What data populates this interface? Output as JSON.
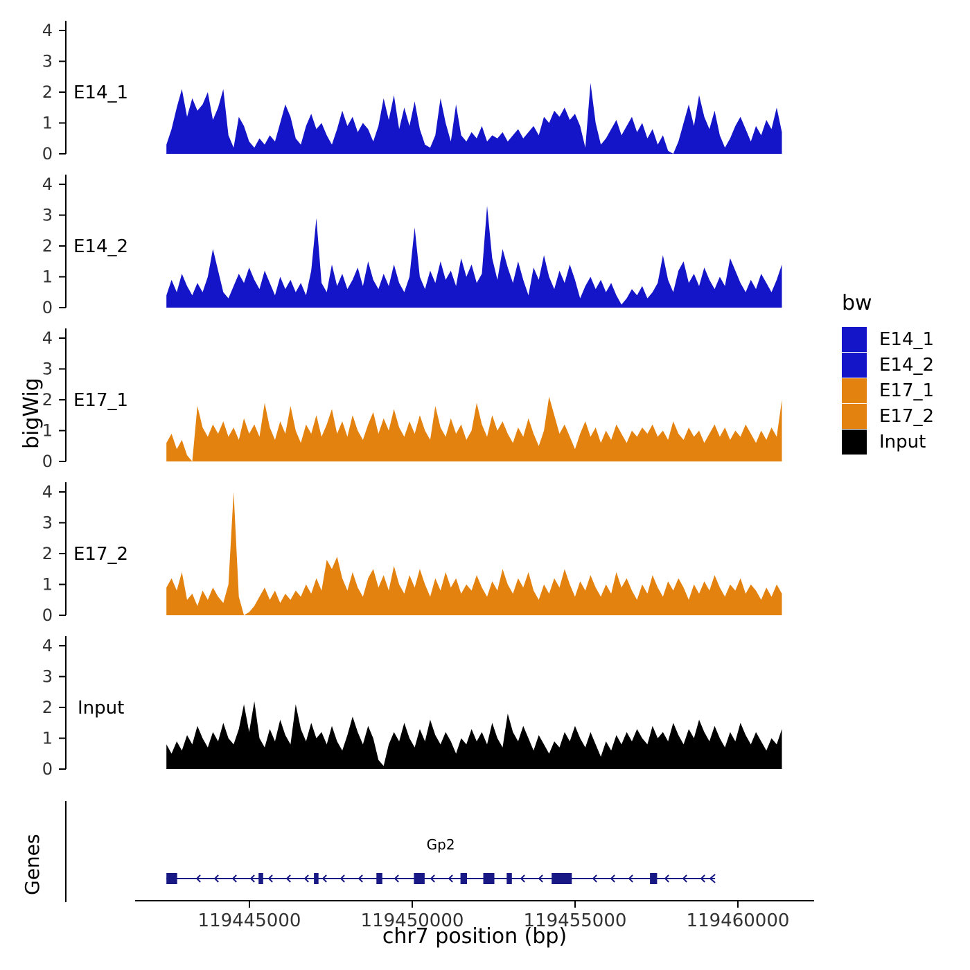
{
  "chart_data": {
    "type": "area",
    "title": "",
    "ylabel": "bigWig",
    "xlabel": "chr7 position (bp)",
    "ylim": [
      0,
      4.3
    ],
    "y_ticks": [
      0,
      1,
      2,
      3,
      4
    ],
    "x_ticks": [
      119445000,
      119450000,
      119455000,
      119460000
    ],
    "x_tick_labels": [
      "119445000",
      "119450000",
      "119455000",
      "119460000"
    ],
    "x_domain": [
      119441500,
      119462400
    ],
    "series_x_range": [
      119442450,
      119461350
    ],
    "grid": false,
    "legend_position": "right",
    "series": [
      {
        "name": "E14_1",
        "color": "#1414c8",
        "values": [
          0.3,
          0.8,
          1.5,
          2.1,
          1.2,
          1.8,
          1.4,
          1.6,
          2.0,
          1.1,
          1.5,
          2.1,
          0.6,
          0.2,
          1.2,
          0.9,
          0.4,
          0.2,
          0.5,
          0.3,
          0.6,
          0.4,
          1.0,
          1.6,
          1.2,
          0.5,
          0.3,
          0.9,
          1.3,
          0.8,
          1.0,
          0.6,
          0.3,
          0.8,
          1.4,
          0.9,
          1.2,
          0.7,
          1.0,
          0.8,
          0.4,
          0.9,
          1.8,
          1.1,
          1.9,
          0.8,
          1.5,
          0.9,
          1.7,
          0.8,
          0.3,
          0.2,
          0.6,
          1.8,
          1.0,
          0.4,
          1.6,
          0.6,
          0.4,
          0.7,
          0.5,
          0.9,
          0.4,
          0.6,
          0.5,
          0.7,
          0.4,
          0.6,
          0.8,
          0.5,
          0.7,
          0.9,
          0.6,
          1.2,
          1.0,
          1.4,
          1.2,
          1.5,
          1.1,
          1.3,
          0.9,
          0.2,
          2.3,
          1.0,
          0.3,
          0.5,
          0.8,
          1.1,
          0.6,
          0.9,
          1.2,
          0.7,
          1.0,
          0.5,
          0.8,
          0.3,
          0.6,
          0.1,
          0.0,
          0.4,
          1.0,
          1.6,
          0.9,
          1.9,
          1.2,
          0.8,
          1.4,
          0.6,
          0.2,
          0.5,
          0.9,
          1.2,
          0.8,
          0.4,
          0.9,
          0.6,
          1.1,
          0.8,
          1.5,
          0.7
        ]
      },
      {
        "name": "E14_2",
        "color": "#1414c8",
        "values": [
          0.4,
          0.9,
          0.5,
          1.1,
          0.7,
          0.4,
          0.8,
          0.5,
          1.0,
          1.9,
          1.2,
          0.5,
          0.3,
          0.7,
          1.1,
          0.8,
          1.3,
          0.9,
          0.6,
          1.2,
          0.8,
          0.4,
          1.0,
          0.6,
          0.9,
          0.5,
          0.8,
          0.4,
          1.2,
          2.9,
          0.8,
          0.5,
          1.4,
          0.7,
          1.1,
          0.6,
          0.9,
          1.3,
          0.7,
          1.5,
          0.9,
          0.6,
          1.1,
          0.7,
          1.4,
          0.8,
          0.5,
          1.0,
          2.6,
          1.0,
          0.6,
          1.2,
          0.8,
          1.5,
          0.9,
          1.2,
          0.7,
          1.6,
          1.0,
          1.4,
          0.8,
          1.1,
          3.3,
          1.6,
          0.9,
          1.9,
          1.3,
          0.8,
          1.5,
          0.9,
          0.4,
          1.3,
          0.9,
          1.7,
          1.0,
          0.6,
          1.2,
          0.8,
          1.4,
          0.9,
          0.3,
          0.7,
          1.0,
          0.6,
          0.9,
          0.5,
          0.8,
          0.4,
          0.1,
          0.3,
          0.6,
          0.4,
          0.7,
          0.3,
          0.5,
          0.8,
          1.7,
          0.9,
          0.5,
          1.2,
          1.5,
          0.8,
          1.1,
          0.7,
          1.3,
          0.9,
          0.6,
          1.0,
          0.7,
          1.6,
          1.2,
          0.8,
          0.5,
          0.9,
          0.6,
          1.1,
          0.8,
          0.5,
          0.9,
          1.4
        ]
      },
      {
        "name": "E17_1",
        "color": "#e3820f",
        "values": [
          0.6,
          0.9,
          0.4,
          0.7,
          0.2,
          0.0,
          1.8,
          1.1,
          0.8,
          1.2,
          0.9,
          1.3,
          0.8,
          1.1,
          0.7,
          1.4,
          0.9,
          1.2,
          0.8,
          1.9,
          1.1,
          0.7,
          1.3,
          0.9,
          1.8,
          1.0,
          0.6,
          1.2,
          0.9,
          1.5,
          0.8,
          1.2,
          1.7,
          0.9,
          1.3,
          0.8,
          1.5,
          1.0,
          0.7,
          1.2,
          1.6,
          0.9,
          1.4,
          1.0,
          1.7,
          1.1,
          0.8,
          1.3,
          0.9,
          1.5,
          1.0,
          0.7,
          1.8,
          1.1,
          0.8,
          1.4,
          0.9,
          1.2,
          0.7,
          1.0,
          1.9,
          1.2,
          0.8,
          1.5,
          1.0,
          1.3,
          0.9,
          0.6,
          1.1,
          0.8,
          1.4,
          0.9,
          0.5,
          1.0,
          2.1,
          1.5,
          0.9,
          1.2,
          0.8,
          0.4,
          0.9,
          1.3,
          0.8,
          1.1,
          0.6,
          1.0,
          0.7,
          1.2,
          0.9,
          0.6,
          1.0,
          0.8,
          1.1,
          0.9,
          1.2,
          0.8,
          1.0,
          0.7,
          1.3,
          0.9,
          0.7,
          1.1,
          0.8,
          1.0,
          0.6,
          0.9,
          1.2,
          0.8,
          1.1,
          0.7,
          1.0,
          0.8,
          1.2,
          0.9,
          0.6,
          1.0,
          0.7,
          1.1,
          0.8,
          2.0
        ]
      },
      {
        "name": "E17_2",
        "color": "#e3820f",
        "values": [
          0.9,
          1.2,
          0.8,
          1.4,
          0.5,
          0.7,
          0.3,
          0.8,
          0.5,
          0.9,
          0.6,
          0.4,
          1.0,
          4.0,
          0.6,
          0.0,
          0.1,
          0.3,
          0.6,
          0.9,
          0.5,
          0.8,
          0.4,
          0.7,
          0.5,
          0.8,
          0.6,
          1.0,
          0.7,
          1.2,
          0.8,
          1.8,
          1.5,
          1.9,
          1.2,
          0.8,
          1.4,
          0.9,
          0.6,
          1.2,
          1.5,
          0.9,
          1.3,
          0.8,
          1.6,
          1.0,
          0.7,
          1.3,
          0.9,
          1.5,
          1.0,
          0.6,
          1.2,
          0.8,
          1.4,
          0.9,
          1.2,
          0.7,
          1.0,
          0.8,
          1.3,
          0.9,
          0.6,
          1.1,
          0.8,
          1.5,
          1.0,
          0.7,
          1.2,
          0.9,
          1.4,
          0.8,
          0.5,
          1.0,
          0.7,
          1.2,
          0.9,
          1.5,
          1.0,
          0.6,
          1.1,
          0.8,
          1.3,
          0.9,
          0.6,
          1.0,
          0.7,
          1.4,
          0.9,
          1.2,
          0.8,
          0.5,
          1.0,
          0.7,
          1.3,
          0.9,
          0.6,
          1.1,
          0.8,
          1.2,
          0.9,
          0.5,
          1.0,
          0.7,
          1.1,
          0.8,
          1.3,
          0.9,
          0.6,
          1.0,
          0.8,
          1.2,
          0.7,
          1.0,
          0.8,
          0.5,
          0.9,
          0.6,
          1.0,
          0.7
        ]
      },
      {
        "name": "Input",
        "color": "#000000",
        "values": [
          0.8,
          0.5,
          0.9,
          0.6,
          1.1,
          0.8,
          1.4,
          1.0,
          0.7,
          1.2,
          0.9,
          1.5,
          1.0,
          0.8,
          1.3,
          2.1,
          1.2,
          2.2,
          1.0,
          0.7,
          1.3,
          0.9,
          1.6,
          1.1,
          0.8,
          2.1,
          1.3,
          0.9,
          1.5,
          1.0,
          1.2,
          0.8,
          1.4,
          0.9,
          0.6,
          1.1,
          1.7,
          1.2,
          0.8,
          1.4,
          1.0,
          0.3,
          0.1,
          0.8,
          1.2,
          0.9,
          1.5,
          1.0,
          0.7,
          1.3,
          0.9,
          1.6,
          1.1,
          0.8,
          1.2,
          0.9,
          0.5,
          1.0,
          0.8,
          1.3,
          0.9,
          1.2,
          0.8,
          1.5,
          1.0,
          0.7,
          1.8,
          1.2,
          0.9,
          1.4,
          1.0,
          0.6,
          1.1,
          0.8,
          0.5,
          0.9,
          0.7,
          1.2,
          0.9,
          1.4,
          1.0,
          0.7,
          1.2,
          0.8,
          0.4,
          0.9,
          0.6,
          1.1,
          0.8,
          1.2,
          0.9,
          1.3,
          1.0,
          0.8,
          1.4,
          1.0,
          1.2,
          0.9,
          1.5,
          1.1,
          0.8,
          1.3,
          1.0,
          1.6,
          1.2,
          0.9,
          1.4,
          1.0,
          0.7,
          1.2,
          0.9,
          1.5,
          1.1,
          0.8,
          1.2,
          0.9,
          0.6,
          1.0,
          0.8,
          1.3
        ]
      }
    ],
    "gene_track": {
      "label": "Genes",
      "gene": {
        "name": "Gp2",
        "strand": "-",
        "color": "#191985",
        "start": 119442450,
        "end": 119459300,
        "exons": [
          [
            119442450,
            119442780
          ],
          [
            119445280,
            119445420
          ],
          [
            119446980,
            119447120
          ],
          [
            119448900,
            119449080
          ],
          [
            119450050,
            119450380
          ],
          [
            119451480,
            119451680
          ],
          [
            119452180,
            119452520
          ],
          [
            119452900,
            119453060
          ],
          [
            119454280,
            119454900
          ],
          [
            119457300,
            119457520
          ]
        ]
      }
    }
  },
  "legend": {
    "title": "bw",
    "entries": [
      {
        "label": "E14_1",
        "color": "#1414c8"
      },
      {
        "label": "E14_2",
        "color": "#1414c8"
      },
      {
        "label": "E17_1",
        "color": "#e3820f"
      },
      {
        "label": "E17_2",
        "color": "#e3820f"
      },
      {
        "label": "Input",
        "color": "#000000"
      }
    ]
  }
}
